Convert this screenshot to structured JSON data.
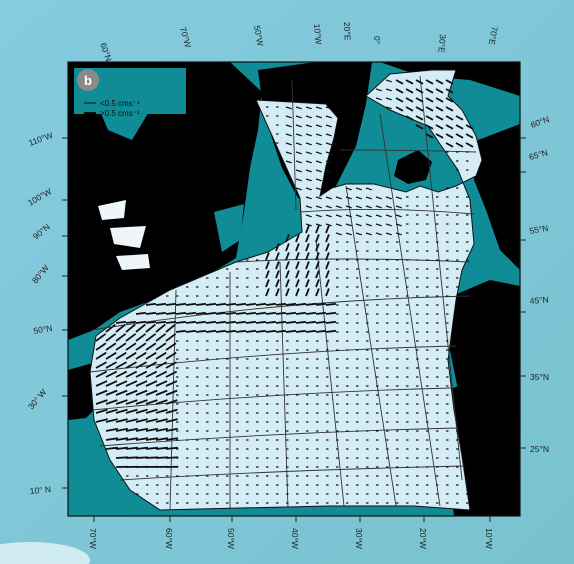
{
  "panel_label": "b",
  "legend": {
    "items": [
      {
        "label": "<0.5 cms⁻¹"
      },
      {
        "label": ">0.5 cms⁻¹"
      }
    ]
  },
  "labels": {
    "top": [
      "60°N",
      "70°W",
      "50°W",
      "10°W",
      "20°E",
      "0°",
      "30°E",
      "70°E"
    ],
    "left": [
      "110°W",
      "100°W",
      "90°N",
      "80°W",
      "50°N",
      "30° W",
      "10° N"
    ],
    "right": [
      "60°N",
      "65°N",
      "55°N",
      "45°N",
      "35°N",
      "25°N"
    ],
    "bottom": [
      "70°W",
      "60°W",
      "50°W",
      "40°W",
      "30°W",
      "20°W",
      "10°W"
    ]
  },
  "colors": {
    "background": "#7fc6d6",
    "land": "#0f8c96",
    "ocean": "#d4ecf6",
    "ink": "#111111",
    "panel_circle": "#8a8a8a"
  }
}
